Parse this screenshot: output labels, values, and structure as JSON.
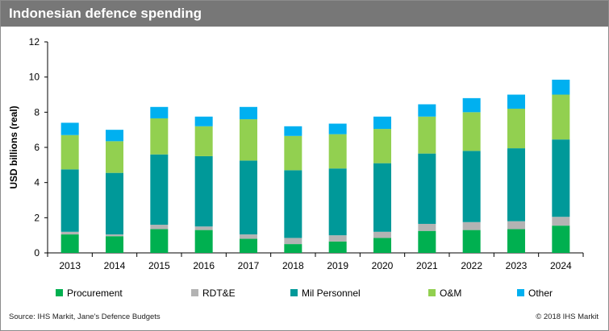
{
  "title": "Indonesian defence spending",
  "source": "Source: IHS Markit, Jane's Defence Budgets",
  "copyright": "© 2018 IHS Markit",
  "chart_data": {
    "type": "bar",
    "stacked": true,
    "categories": [
      "2013",
      "2014",
      "2015",
      "2016",
      "2017",
      "2018",
      "2019",
      "2020",
      "2021",
      "2022",
      "2023",
      "2024"
    ],
    "ylabel": "USD billions (real)",
    "xlabel": "",
    "ylim": [
      0,
      12
    ],
    "yticks": [
      0,
      2,
      4,
      6,
      8,
      10,
      12
    ],
    "grid": false,
    "legend_position": "bottom",
    "series": [
      {
        "name": "Procurement",
        "color": "#00b050",
        "values": [
          1.05,
          0.95,
          1.35,
          1.3,
          0.8,
          0.5,
          0.65,
          0.85,
          1.25,
          1.3,
          1.35,
          1.55
        ]
      },
      {
        "name": "RDT&E",
        "color": "#b3b3b3",
        "values": [
          0.15,
          0.1,
          0.25,
          0.2,
          0.25,
          0.35,
          0.35,
          0.35,
          0.4,
          0.45,
          0.45,
          0.5
        ]
      },
      {
        "name": "Mil Personnel",
        "color": "#009999",
        "values": [
          3.55,
          3.5,
          4.0,
          4.0,
          4.2,
          3.85,
          3.8,
          3.9,
          4.0,
          4.05,
          4.15,
          4.4
        ]
      },
      {
        "name": "O&M",
        "color": "#92d050",
        "values": [
          1.95,
          1.8,
          2.05,
          1.7,
          2.35,
          1.95,
          1.95,
          1.95,
          2.1,
          2.2,
          2.25,
          2.55
        ]
      },
      {
        "name": "Other",
        "color": "#00b0f0",
        "values": [
          0.7,
          0.65,
          0.65,
          0.55,
          0.7,
          0.55,
          0.6,
          0.7,
          0.7,
          0.8,
          0.8,
          0.85
        ]
      }
    ]
  }
}
